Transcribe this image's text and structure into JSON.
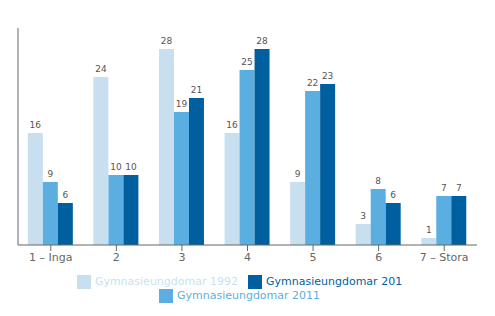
{
  "chart_data": {
    "type": "bar",
    "categories": [
      "1 – Inga",
      "2",
      "3",
      "4",
      "5",
      "6",
      "7 – Stora"
    ],
    "series": [
      {
        "name": "Gymnasieungdomar 1992",
        "color": "#c8dff0",
        "values": [
          16,
          24,
          28,
          16,
          9,
          3,
          1
        ]
      },
      {
        "name": "Gymnasieungdomar 2011",
        "color": "#5aafe0",
        "values": [
          9,
          10,
          19,
          25,
          22,
          8,
          7
        ]
      },
      {
        "name": "Gymnasieungdomar 201",
        "color": "#005f9e",
        "values": [
          6,
          10,
          21,
          28,
          23,
          6,
          7
        ]
      }
    ],
    "ylim": [
      0,
      31
    ],
    "data_labels": true,
    "tick_labels": "x",
    "grid": false,
    "legend": "bottom"
  }
}
